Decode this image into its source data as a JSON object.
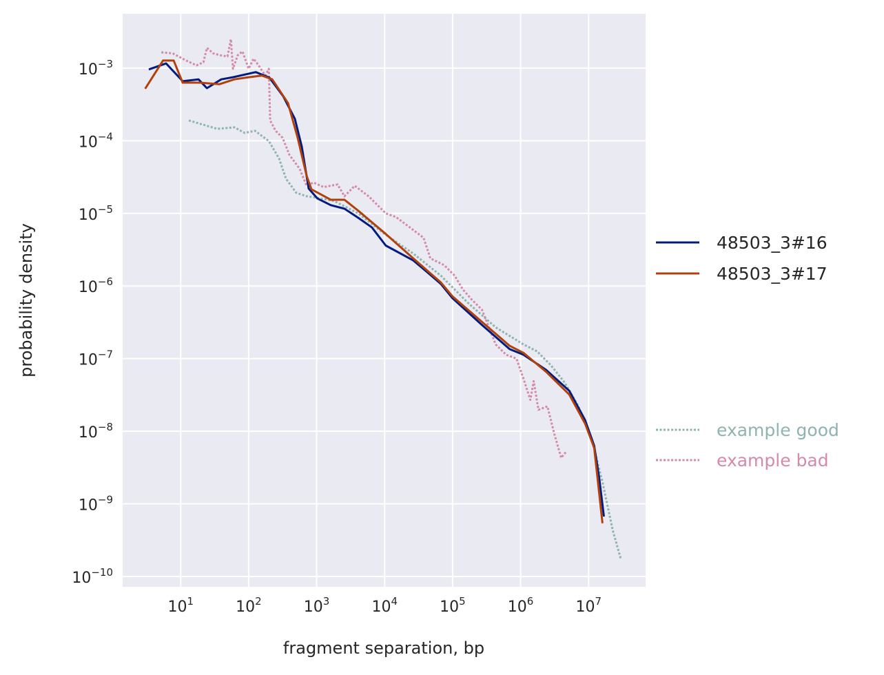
{
  "chart_data": {
    "type": "line",
    "xlabel": "fragment separation, bp",
    "ylabel": "probability density",
    "xscale": "log",
    "yscale": "log",
    "xlim": [
      1.4,
      69000000.0
    ],
    "ylim": [
      7.2e-11,
      0.0056
    ],
    "x_tick_exponents": [
      1,
      2,
      3,
      4,
      5,
      6,
      7
    ],
    "y_tick_exponents": [
      -3,
      -4,
      -5,
      -6,
      -7,
      -8,
      -9,
      -10
    ],
    "tick_base": "10",
    "grid": true,
    "background": "#eaeaf2",
    "legend_placement": "right outside",
    "series": [
      {
        "name": "48503_3#16",
        "color": "#001c7f",
        "style": "solid",
        "x": [
          3.4,
          6.1,
          10.7,
          18.3,
          24.3,
          39.5,
          58.7,
          127,
          202,
          322,
          479,
          604,
          763,
          1030,
          1610,
          2560,
          4080,
          6510,
          10400.0,
          26400.0,
          42000.0,
          67000.0,
          99500.0,
          271000.0,
          690000.0,
          1100000.0,
          2370000.0,
          5200000.0,
          8900000.0,
          12100000.0,
          14300000.0,
          16800000.0
        ],
        "y": [
          0.00096,
          0.00116,
          0.00066,
          0.0007,
          0.00053,
          0.0007,
          0.00075,
          0.00088,
          0.00074,
          0.00041,
          0.0002,
          8.3e-05,
          2.2e-05,
          1.6e-05,
          1.3e-05,
          1.16e-05,
          8.7e-06,
          6.4e-06,
          3.6e-06,
          2.25e-06,
          1.56e-06,
          1.07e-06,
          6.8e-07,
          2.9e-07,
          1.35e-07,
          1.13e-07,
          7e-08,
          3.6e-08,
          1.42e-08,
          6.3e-09,
          2.3e-09,
          6.7e-10
        ]
      },
      {
        "name": "48503_3#17",
        "color": "#b1400d",
        "style": "solid",
        "x": [
          3.0,
          5.5,
          7.9,
          10.7,
          19.2,
          36.9,
          61.6,
          100,
          156,
          222,
          379,
          526,
          711,
          838,
          1000,
          1610,
          2560,
          4080,
          10400.0,
          26400.0,
          67000.0,
          99500.0,
          690000.0,
          1100000.0,
          2370000.0,
          5200000.0,
          8900000.0,
          12100000.0,
          16000000.0
        ],
        "y": [
          0.00052,
          0.00127,
          0.00127,
          0.00063,
          0.00063,
          0.0006,
          0.0007,
          0.00075,
          0.00079,
          0.0007,
          0.00033,
          0.00011,
          3.3e-05,
          2.14e-05,
          1.96e-05,
          1.54e-05,
          1.54e-05,
          1.09e-05,
          5.2e-06,
          2.4e-06,
          1.12e-06,
          7.2e-07,
          1.5e-07,
          1.2e-07,
          6.6e-08,
          3.2e-08,
          1.27e-08,
          5.9e-09,
          5.4e-10
        ]
      },
      {
        "name": "example good",
        "color": "#8fb3ae",
        "style": "dotted",
        "x": [
          13.2,
          34.4,
          61.6,
          87.3,
          124,
          198,
          280,
          354,
          501,
          711,
          1000,
          1810,
          4080,
          10000.0,
          26400.0,
          67000.0,
          170000.0,
          430000.0,
          1100000.0,
          1750000.0,
          2790000.0,
          4440000.0,
          7100000.0,
          11300000.0,
          16000000.0,
          22700000.0,
          30000000.0
        ],
        "y": [
          0.00019,
          0.000146,
          0.000153,
          0.000128,
          0.000137,
          9.9e-05,
          5.7e-05,
          3e-05,
          1.92e-05,
          1.72e-05,
          1.64e-05,
          1.48e-05,
          1e-05,
          5.2e-06,
          2.8e-06,
          1.39e-06,
          5.8e-07,
          2.7e-07,
          1.57e-07,
          1.26e-07,
          8.1e-08,
          4.7e-08,
          2.2e-08,
          7.4e-09,
          2e-09,
          4.3e-10,
          1.7e-10
        ]
      },
      {
        "name": "example bad",
        "color": "#d48aa8",
        "style": "dotted",
        "x": [
          5.2,
          7.6,
          12,
          17.1,
          21.6,
          24.3,
          30,
          38.6,
          48.7,
          54.8,
          58.7,
          69,
          81,
          100,
          118,
          139,
          176,
          198,
          207,
          249,
          315,
          397,
          563,
          711,
          898,
          1270,
          2030,
          2560,
          3640,
          5800,
          10400.0,
          14700.0,
          23500.0,
          37400.0,
          47000.0,
          75000.0,
          107000.0,
          141000.0,
          191000.0,
          271000.0,
          430000.0,
          610000.0,
          870000.0,
          1100000.0,
          1390000.0,
          1560000.0,
          1830000.0,
          2480000.0,
          3130000.0,
          3960000.0,
          4660000.0
        ],
        "y": [
          0.00165,
          0.0016,
          0.00127,
          0.00109,
          0.0012,
          0.0019,
          0.0016,
          0.0015,
          0.00145,
          0.0025,
          0.00098,
          0.0015,
          0.0017,
          0.00098,
          0.00135,
          0.0011,
          0.00079,
          0.00098,
          0.00019,
          0.000137,
          0.00011,
          6.4e-05,
          4.1e-05,
          2.4e-05,
          2.66e-05,
          2.3e-05,
          2.5e-05,
          1.72e-05,
          2.4e-05,
          1.72e-05,
          1e-05,
          8.9e-06,
          6.4e-06,
          4.6e-06,
          2.4e-06,
          1.94e-06,
          1.39e-06,
          9e-07,
          6.5e-07,
          4.7e-07,
          1.57e-07,
          1.13e-07,
          1e-07,
          5.3e-08,
          2.7e-08,
          4.9e-08,
          1.97e-08,
          2.2e-08,
          9.2e-09,
          4.3e-09,
          5.2e-09
        ]
      }
    ]
  }
}
